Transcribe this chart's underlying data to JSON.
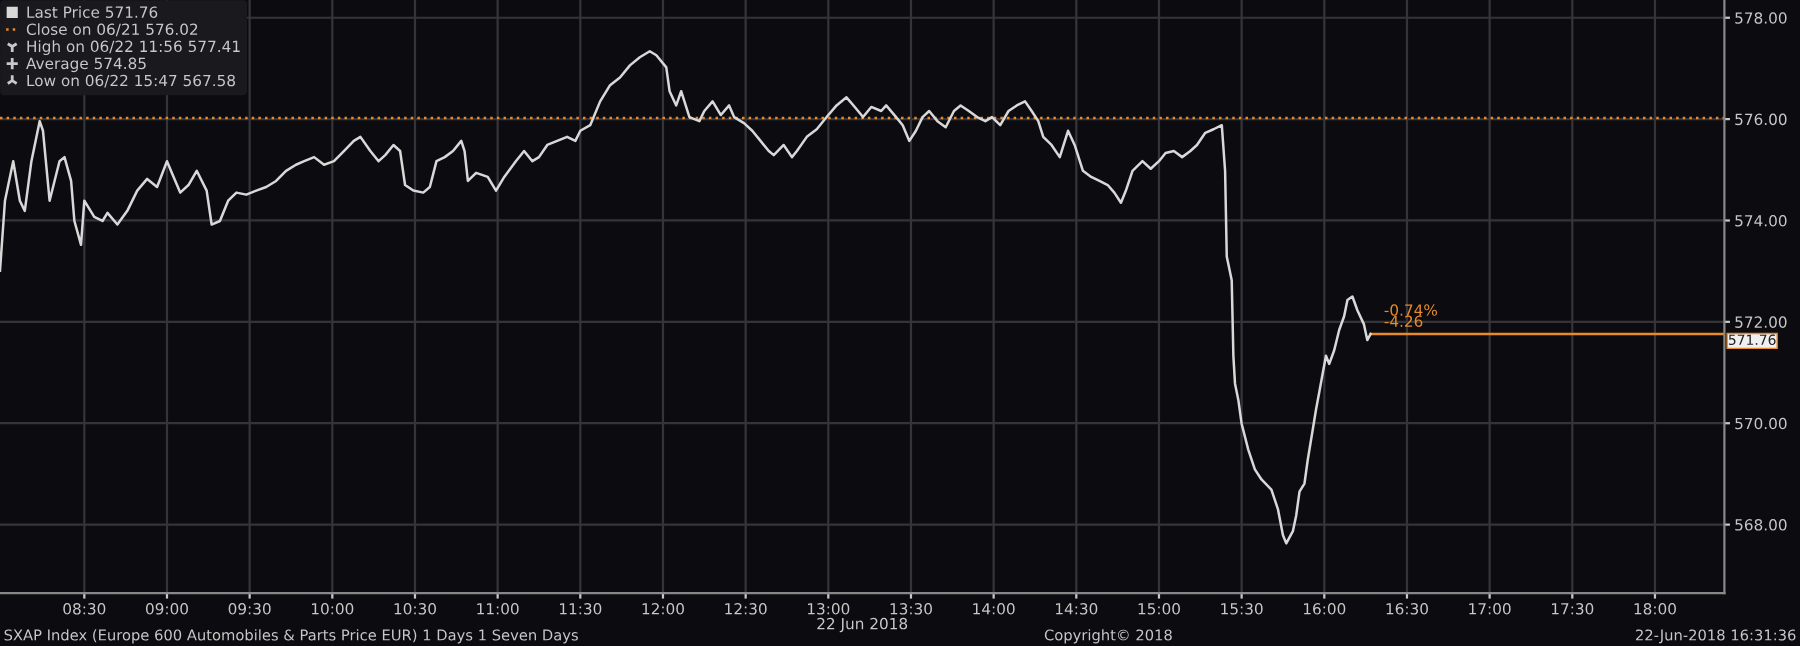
{
  "chart_data": {
    "type": "line",
    "xlabel": "22 Jun 2018",
    "xlim": [
      7.99,
      18.42
    ],
    "xticks": [
      {
        "value": 8.5,
        "label": "08:30"
      },
      {
        "value": 9.0,
        "label": "09:00"
      },
      {
        "value": 9.5,
        "label": "09:30"
      },
      {
        "value": 10.0,
        "label": "10:00"
      },
      {
        "value": 10.5,
        "label": "10:30"
      },
      {
        "value": 11.0,
        "label": "11:00"
      },
      {
        "value": 11.5,
        "label": "11:30"
      },
      {
        "value": 12.0,
        "label": "12:00"
      },
      {
        "value": 12.5,
        "label": "12:30"
      },
      {
        "value": 13.0,
        "label": "13:00"
      },
      {
        "value": 13.5,
        "label": "13:30"
      },
      {
        "value": 14.0,
        "label": "14:00"
      },
      {
        "value": 14.5,
        "label": "14:30"
      },
      {
        "value": 15.0,
        "label": "15:00"
      },
      {
        "value": 15.5,
        "label": "15:30"
      },
      {
        "value": 16.0,
        "label": "16:00"
      },
      {
        "value": 16.5,
        "label": "16:30"
      },
      {
        "value": 17.0,
        "label": "17:00"
      },
      {
        "value": 17.5,
        "label": "17:30"
      },
      {
        "value": 18.0,
        "label": "18:00"
      }
    ],
    "ylim": [
      566.65,
      578.35
    ],
    "yticks": [
      {
        "value": 568,
        "label": "568.00"
      },
      {
        "value": 570,
        "label": "570.00"
      },
      {
        "value": 572,
        "label": "572.00"
      },
      {
        "value": 574,
        "label": "574.00"
      },
      {
        "value": 576,
        "label": "576.00"
      },
      {
        "value": 578,
        "label": "578.00"
      }
    ],
    "grid": true,
    "legend": "top left",
    "marker": "none",
    "line_style": "solid",
    "series": [
      {
        "name": "Last Price 571.76",
        "color": "#d8d8d8",
        "x": [
          7.99,
          8.02,
          8.07,
          8.11,
          8.14,
          8.18,
          8.23,
          8.25,
          8.29,
          8.32,
          8.35,
          8.38,
          8.42,
          8.44,
          8.48,
          8.5,
          8.56,
          8.61,
          8.64,
          8.7,
          8.76,
          8.82,
          8.88,
          8.94,
          9.0,
          9.04,
          9.08,
          9.13,
          9.18,
          9.24,
          9.27,
          9.32,
          9.37,
          9.42,
          9.48,
          9.54,
          9.6,
          9.66,
          9.72,
          9.78,
          9.83,
          9.89,
          9.95,
          10.01,
          10.07,
          10.13,
          10.17,
          10.23,
          10.28,
          10.32,
          10.37,
          10.41,
          10.44,
          10.49,
          10.55,
          10.59,
          10.63,
          10.68,
          10.73,
          10.78,
          10.8,
          10.82,
          10.87,
          10.94,
          10.99,
          11.04,
          11.11,
          11.16,
          11.21,
          11.25,
          11.3,
          11.36,
          11.42,
          11.47,
          11.5,
          11.56,
          11.62,
          11.68,
          11.74,
          11.8,
          11.86,
          11.92,
          11.96,
          12.02,
          12.04,
          12.08,
          12.11,
          12.16,
          12.22,
          12.25,
          12.3,
          12.35,
          12.4,
          12.43,
          12.49,
          12.54,
          12.59,
          12.64,
          12.67,
          12.73,
          12.78,
          12.81,
          12.87,
          12.93,
          12.99,
          13.05,
          13.11,
          13.16,
          13.21,
          13.26,
          13.32,
          13.35,
          13.41,
          13.45,
          13.49,
          13.53,
          13.57,
          13.61,
          13.66,
          13.71,
          13.76,
          13.8,
          13.85,
          13.9,
          13.95,
          13.99,
          14.04,
          14.09,
          14.14,
          14.19,
          14.23,
          14.27,
          14.3,
          14.35,
          14.4,
          14.45,
          14.49,
          14.54,
          14.59,
          14.64,
          14.69,
          14.73,
          14.77,
          14.8,
          14.84,
          14.9,
          14.95,
          15.0,
          15.04,
          15.09,
          15.14,
          15.19,
          15.23,
          15.28,
          15.33,
          15.38,
          15.4,
          15.41,
          15.44,
          15.45,
          15.46,
          15.48,
          15.5,
          15.54,
          15.58,
          15.62,
          15.68,
          15.72,
          15.75,
          15.77,
          15.81,
          15.83,
          15.85,
          15.88,
          15.9,
          15.93,
          15.95,
          15.97,
          16.01,
          16.03,
          16.06,
          16.09,
          16.12,
          16.14,
          16.17,
          16.2,
          16.24,
          16.26,
          16.28
        ],
        "values": [
          573.01,
          574.39,
          575.17,
          574.39,
          574.19,
          575.17,
          575.96,
          575.77,
          574.39,
          574.78,
          575.17,
          575.25,
          574.78,
          573.99,
          573.52,
          574.39,
          574.07,
          573.99,
          574.15,
          573.92,
          574.19,
          574.59,
          574.82,
          574.66,
          575.17,
          574.86,
          574.55,
          574.7,
          574.98,
          574.59,
          573.92,
          573.99,
          574.39,
          574.55,
          574.51,
          574.59,
          574.66,
          574.78,
          574.98,
          575.1,
          575.17,
          575.25,
          575.1,
          575.17,
          575.37,
          575.57,
          575.65,
          575.37,
          575.17,
          575.29,
          575.49,
          575.37,
          574.7,
          574.59,
          574.55,
          574.66,
          575.17,
          575.25,
          575.37,
          575.57,
          575.37,
          574.78,
          574.94,
          574.86,
          574.59,
          574.86,
          575.17,
          575.37,
          575.17,
          575.25,
          575.49,
          575.57,
          575.65,
          575.57,
          575.77,
          575.88,
          576.35,
          576.67,
          576.82,
          577.06,
          577.22,
          577.34,
          577.26,
          577.02,
          576.55,
          576.27,
          576.55,
          576.04,
          575.96,
          576.16,
          576.35,
          576.08,
          576.27,
          576.04,
          575.92,
          575.77,
          575.57,
          575.37,
          575.29,
          575.49,
          575.25,
          575.37,
          575.65,
          575.8,
          576.04,
          576.27,
          576.43,
          576.24,
          576.04,
          576.24,
          576.16,
          576.27,
          576.04,
          575.88,
          575.57,
          575.77,
          576.04,
          576.16,
          575.96,
          575.84,
          576.16,
          576.27,
          576.16,
          576.04,
          575.96,
          576.04,
          575.88,
          576.16,
          576.27,
          576.35,
          576.16,
          575.96,
          575.65,
          575.49,
          575.25,
          575.77,
          575.49,
          574.98,
          574.86,
          574.78,
          574.7,
          574.55,
          574.35,
          574.59,
          574.98,
          575.17,
          575.02,
          575.17,
          575.33,
          575.37,
          575.25,
          575.37,
          575.49,
          575.73,
          575.8,
          575.88,
          574.98,
          573.29,
          572.82,
          571.33,
          570.78,
          570.46,
          569.99,
          569.48,
          569.09,
          568.89,
          568.69,
          568.3,
          567.79,
          567.63,
          567.87,
          568.18,
          568.65,
          568.81,
          569.28,
          569.87,
          570.27,
          570.62,
          571.33,
          571.17,
          571.44,
          571.84,
          572.11,
          572.43,
          572.5,
          572.23,
          571.95,
          571.64,
          571.76
        ]
      }
    ],
    "ref_lines": [
      {
        "axis": "y",
        "value": 576.02,
        "label": "Close on 06/21 576.02",
        "color": "#e8892a",
        "line_style": "dotted"
      },
      {
        "axis": "y",
        "value": 571.76,
        "label": "571.76",
        "color": "#e8892a",
        "line_style": "solid"
      }
    ],
    "annotations": [
      "High on 06/22 11:56 577.41",
      "Average 574.85",
      "Low on 06/22 15:47 567.58",
      "-0.74%",
      "-4.26",
      "SXAP Index (Europe 600 Automobiles & Parts Price EUR) 1 Days 1 Seven Days",
      "Copyright© 2018",
      "22-Jun-2018 16:31:36"
    ]
  }
}
